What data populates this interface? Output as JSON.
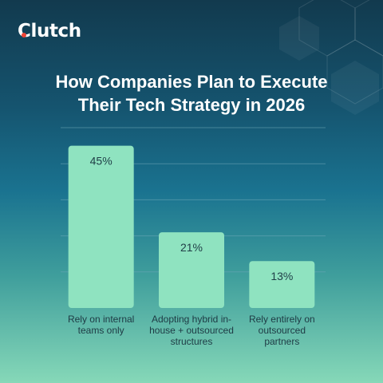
{
  "brand": {
    "logo_text": "Clutch",
    "accent_color": "#ef4335"
  },
  "colors": {
    "bar": "#8fe3c0",
    "gridline": "#6fa8b8",
    "background_top": "#123a4e",
    "background_bottom": "#86d8b8"
  },
  "chart_data": {
    "type": "bar",
    "title_lines": [
      "How Companies Plan to Execute",
      "Their Tech Strategy in 2026"
    ],
    "categories": [
      [
        "Rely on internal",
        "teams only"
      ],
      [
        "Adopting hybrid in-",
        "house + outsourced",
        "structures"
      ],
      [
        "Rely entirely on",
        "outsourced",
        "partners"
      ]
    ],
    "values": [
      45,
      21,
      13
    ],
    "value_labels": [
      "45%",
      "21%",
      "13%"
    ],
    "unit": "%",
    "ylim": [
      0,
      50
    ],
    "grid": true,
    "legend": "none"
  }
}
